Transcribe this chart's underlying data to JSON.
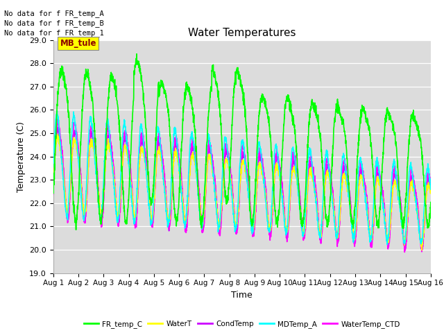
{
  "title": "Water Temperatures",
  "xlabel": "Time",
  "ylabel": "Temperature (C)",
  "ylim": [
    19.0,
    29.0
  ],
  "yticks": [
    19.0,
    20.0,
    21.0,
    22.0,
    23.0,
    24.0,
    25.0,
    26.0,
    27.0,
    28.0,
    29.0
  ],
  "xtick_labels": [
    "Aug 1",
    "Aug 2",
    "Aug 3",
    "Aug 4",
    "Aug 5",
    "Aug 6",
    "Aug 7",
    "Aug 8",
    "Aug 9",
    "Aug 10",
    "Aug 11",
    "Aug 12",
    "Aug 13",
    "Aug 14",
    "Aug 15",
    "Aug 16"
  ],
  "annotations": [
    "No data for f FR_temp_A",
    "No data for f FR_temp_B",
    "No data for f FR_temp_1"
  ],
  "mb_tule_label": "MB_tule",
  "series": {
    "FR_temp_C": {
      "color": "#00ff00",
      "linewidth": 1.2
    },
    "WaterT": {
      "color": "#ffff00",
      "linewidth": 1.2
    },
    "CondTemp": {
      "color": "#cc00ff",
      "linewidth": 1.2
    },
    "MDTemp_A": {
      "color": "#00ffff",
      "linewidth": 1.2
    },
    "WaterTemp_CTD": {
      "color": "#ff00ff",
      "linewidth": 1.2
    }
  },
  "bg_color": "#dcdcdc",
  "fig_bg": "#ffffff",
  "days": 15
}
